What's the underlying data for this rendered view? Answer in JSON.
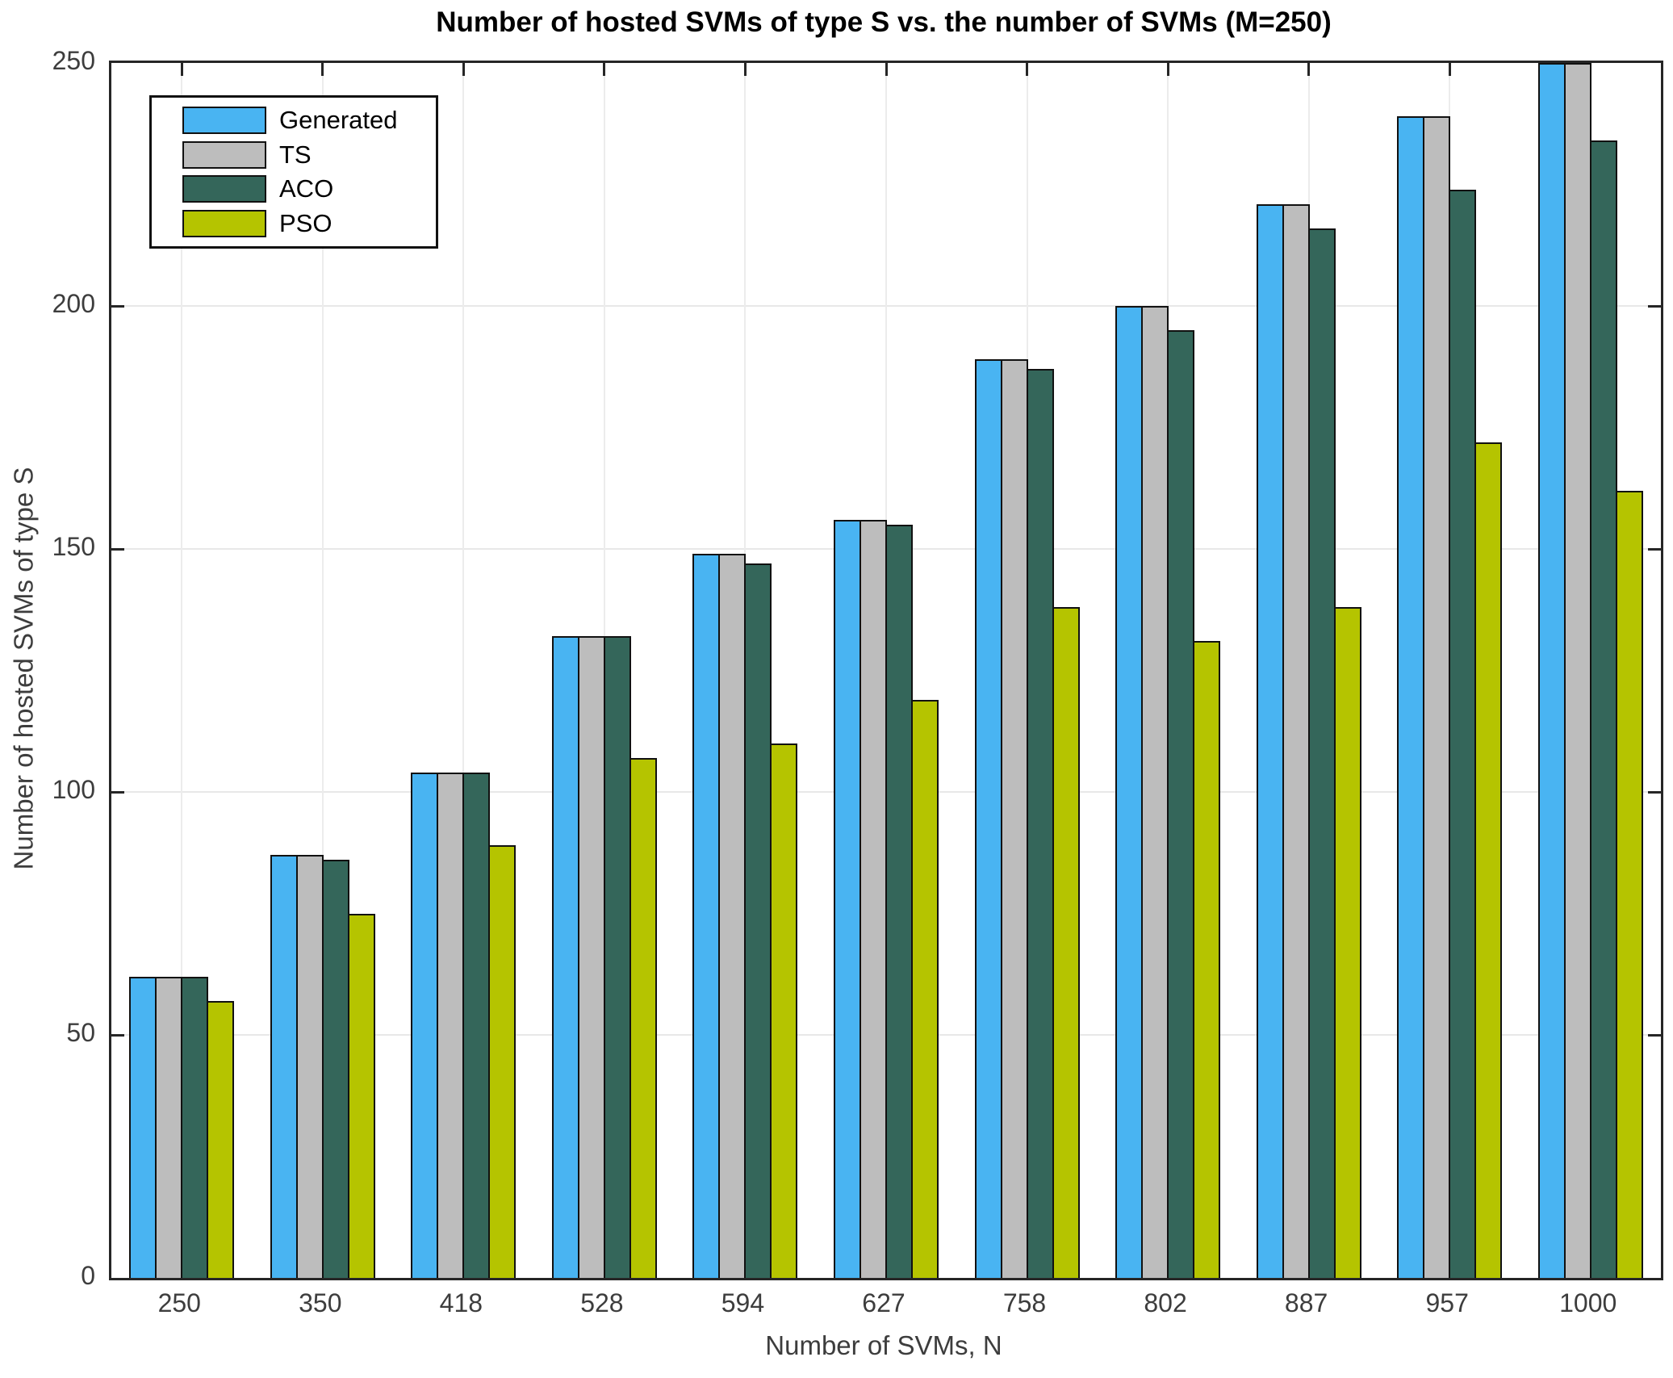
{
  "chart_data": {
    "type": "bar",
    "title": "Number of hosted SVMs of type S vs. the number of SVMs (M=250)",
    "xlabel": "Number of SVMs, N",
    "ylabel": "Number of hosted SVMs of type S",
    "categories": [
      "250",
      "350",
      "418",
      "528",
      "594",
      "627",
      "758",
      "802",
      "887",
      "957",
      "1000"
    ],
    "series": [
      {
        "name": "Generated",
        "color": "#49B4F2",
        "values": [
          62,
          87,
          104,
          132,
          149,
          156,
          189,
          200,
          221,
          239,
          250
        ]
      },
      {
        "name": "TS",
        "color": "#BDBDBD",
        "values": [
          62,
          87,
          104,
          132,
          149,
          156,
          189,
          200,
          221,
          239,
          250
        ]
      },
      {
        "name": "ACO",
        "color": "#34665A",
        "values": [
          62,
          86,
          104,
          132,
          147,
          155,
          187,
          195,
          216,
          224,
          234
        ]
      },
      {
        "name": "PSO",
        "color": "#B5C400",
        "values": [
          57,
          75,
          89,
          107,
          110,
          119,
          138,
          131,
          138,
          172,
          162
        ]
      }
    ],
    "ylim": [
      0,
      250
    ],
    "yticks": [
      0,
      50,
      100,
      150,
      200,
      250
    ],
    "grid": true,
    "legend_position": "top-left",
    "axis_color": "#262626",
    "grid_color": "#e8e8e8",
    "bar_edge_color": "#111111"
  }
}
